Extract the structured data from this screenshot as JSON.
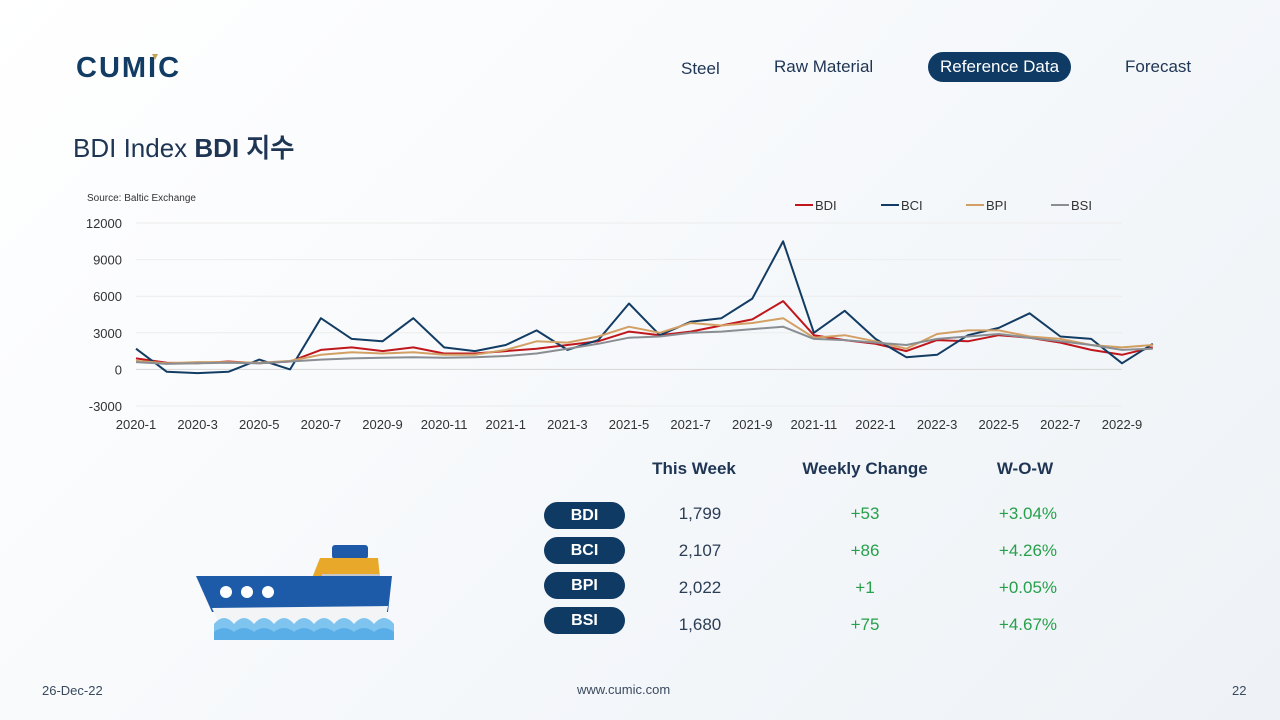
{
  "header": {
    "logo_text": "CUMIC",
    "nav": [
      {
        "label": "Steel",
        "active": false
      },
      {
        "label": "Raw Material",
        "active": false
      },
      {
        "label": "Reference Data",
        "active": true
      },
      {
        "label": "Forecast",
        "active": false
      }
    ]
  },
  "page": {
    "title_regular": "BDI Index ",
    "title_bold": "BDI 지수"
  },
  "chart_data": {
    "type": "line",
    "source": "Source:  Baltic Exchange",
    "xlabel": "",
    "ylabel": "",
    "ylim": [
      -3000,
      12000
    ],
    "y_ticks": [
      12000,
      9000,
      6000,
      3000,
      0,
      -3000
    ],
    "x_ticks": [
      "2020-1",
      "2020-3",
      "2020-5",
      "2020-7",
      "2020-9",
      "2020-11",
      "2021-1",
      "2021-3",
      "2021-5",
      "2021-7",
      "2021-9",
      "2021-11",
      "2022-1",
      "2022-3",
      "2022-5",
      "2022-7",
      "2022-9"
    ],
    "grid": true,
    "legend_position": "top-right",
    "x_start": "2020-01",
    "series": [
      {
        "name": "BDI",
        "color": "#c0171d",
        "points": [
          [
            "2020-01",
            900
          ],
          [
            "2020-02",
            550
          ],
          [
            "2020-03",
            500
          ],
          [
            "2020-04",
            650
          ],
          [
            "2020-05",
            500
          ],
          [
            "2020-06",
            650
          ],
          [
            "2020-07",
            1600
          ],
          [
            "2020-08",
            1800
          ],
          [
            "2020-09",
            1500
          ],
          [
            "2020-10",
            1800
          ],
          [
            "2020-11",
            1300
          ],
          [
            "2020-12",
            1300
          ],
          [
            "2021-01",
            1500
          ],
          [
            "2021-02",
            1700
          ],
          [
            "2021-03",
            2000
          ],
          [
            "2021-04",
            2300
          ],
          [
            "2021-05",
            3100
          ],
          [
            "2021-06",
            2800
          ],
          [
            "2021-07",
            3100
          ],
          [
            "2021-08",
            3600
          ],
          [
            "2021-09",
            4100
          ],
          [
            "2021-10",
            5600
          ],
          [
            "2021-11",
            2800
          ],
          [
            "2021-12",
            2400
          ],
          [
            "2022-01",
            2100
          ],
          [
            "2022-02",
            1500
          ],
          [
            "2022-03",
            2400
          ],
          [
            "2022-04",
            2300
          ],
          [
            "2022-05",
            2800
          ],
          [
            "2022-06",
            2600
          ],
          [
            "2022-07",
            2200
          ],
          [
            "2022-08",
            1600
          ],
          [
            "2022-09",
            1200
          ],
          [
            "2022-10",
            1800
          ]
        ]
      },
      {
        "name": "BCI",
        "color": "#123c63",
        "points": [
          [
            "2020-01",
            1700
          ],
          [
            "2020-02",
            -200
          ],
          [
            "2020-03",
            -300
          ],
          [
            "2020-04",
            -200
          ],
          [
            "2020-05",
            800
          ],
          [
            "2020-06",
            0
          ],
          [
            "2020-07",
            4200
          ],
          [
            "2020-08",
            2500
          ],
          [
            "2020-09",
            2300
          ],
          [
            "2020-10",
            4200
          ],
          [
            "2020-11",
            1800
          ],
          [
            "2020-12",
            1500
          ],
          [
            "2021-01",
            2000
          ],
          [
            "2021-02",
            3200
          ],
          [
            "2021-03",
            1600
          ],
          [
            "2021-04",
            2400
          ],
          [
            "2021-05",
            5400
          ],
          [
            "2021-06",
            2800
          ],
          [
            "2021-07",
            3900
          ],
          [
            "2021-08",
            4200
          ],
          [
            "2021-09",
            5800
          ],
          [
            "2021-10",
            10500
          ],
          [
            "2021-11",
            3000
          ],
          [
            "2021-12",
            4800
          ],
          [
            "2022-01",
            2500
          ],
          [
            "2022-02",
            1000
          ],
          [
            "2022-03",
            1200
          ],
          [
            "2022-04",
            2800
          ],
          [
            "2022-05",
            3400
          ],
          [
            "2022-06",
            4600
          ],
          [
            "2022-07",
            2700
          ],
          [
            "2022-08",
            2500
          ],
          [
            "2022-09",
            500
          ],
          [
            "2022-10",
            2100
          ]
        ]
      },
      {
        "name": "BPI",
        "color": "#d2a064",
        "points": [
          [
            "2020-01",
            700
          ],
          [
            "2020-02",
            500
          ],
          [
            "2020-03",
            600
          ],
          [
            "2020-04",
            600
          ],
          [
            "2020-05",
            550
          ],
          [
            "2020-06",
            700
          ],
          [
            "2020-07",
            1200
          ],
          [
            "2020-08",
            1400
          ],
          [
            "2020-09",
            1300
          ],
          [
            "2020-10",
            1400
          ],
          [
            "2020-11",
            1200
          ],
          [
            "2020-12",
            1200
          ],
          [
            "2021-01",
            1600
          ],
          [
            "2021-02",
            2300
          ],
          [
            "2021-03",
            2200
          ],
          [
            "2021-04",
            2700
          ],
          [
            "2021-05",
            3500
          ],
          [
            "2021-06",
            3000
          ],
          [
            "2021-07",
            3800
          ],
          [
            "2021-08",
            3600
          ],
          [
            "2021-09",
            3800
          ],
          [
            "2021-10",
            4200
          ],
          [
            "2021-11",
            2600
          ],
          [
            "2021-12",
            2800
          ],
          [
            "2022-01",
            2300
          ],
          [
            "2022-02",
            1700
          ],
          [
            "2022-03",
            2900
          ],
          [
            "2022-04",
            3200
          ],
          [
            "2022-05",
            3200
          ],
          [
            "2022-06",
            2700
          ],
          [
            "2022-07",
            2500
          ],
          [
            "2022-08",
            2000
          ],
          [
            "2022-09",
            1800
          ],
          [
            "2022-10",
            2000
          ]
        ]
      },
      {
        "name": "BSI",
        "color": "#8a8e93",
        "points": [
          [
            "2020-01",
            600
          ],
          [
            "2020-02",
            450
          ],
          [
            "2020-03",
            500
          ],
          [
            "2020-04",
            550
          ],
          [
            "2020-05",
            500
          ],
          [
            "2020-06",
            650
          ],
          [
            "2020-07",
            800
          ],
          [
            "2020-08",
            900
          ],
          [
            "2020-09",
            950
          ],
          [
            "2020-10",
            1000
          ],
          [
            "2020-11",
            950
          ],
          [
            "2020-12",
            1000
          ],
          [
            "2021-01",
            1100
          ],
          [
            "2021-02",
            1300
          ],
          [
            "2021-03",
            1700
          ],
          [
            "2021-04",
            2100
          ],
          [
            "2021-05",
            2600
          ],
          [
            "2021-06",
            2700
          ],
          [
            "2021-07",
            3000
          ],
          [
            "2021-08",
            3100
          ],
          [
            "2021-09",
            3300
          ],
          [
            "2021-10",
            3500
          ],
          [
            "2021-11",
            2500
          ],
          [
            "2021-12",
            2400
          ],
          [
            "2022-01",
            2200
          ],
          [
            "2022-02",
            2000
          ],
          [
            "2022-03",
            2500
          ],
          [
            "2022-04",
            2700
          ],
          [
            "2022-05",
            2900
          ],
          [
            "2022-06",
            2600
          ],
          [
            "2022-07",
            2300
          ],
          [
            "2022-08",
            2000
          ],
          [
            "2022-09",
            1600
          ],
          [
            "2022-10",
            1700
          ]
        ]
      }
    ]
  },
  "table": {
    "headers": [
      "This Week",
      "Weekly Change",
      "W-O-W"
    ],
    "rows": [
      {
        "index": "BDI",
        "this_week": "1,799",
        "change": "+53",
        "wow": "+3.04%"
      },
      {
        "index": "BCI",
        "this_week": "2,107",
        "change": "+86",
        "wow": "+4.26%"
      },
      {
        "index": "BPI",
        "this_week": "2,022",
        "change": "+1",
        "wow": "+0.05%"
      },
      {
        "index": "BSI",
        "this_week": "1,680",
        "change": "+75",
        "wow": "+4.67%"
      }
    ]
  },
  "footer": {
    "date": "26-Dec-22",
    "website": "www.cumic.com",
    "page_number": "22"
  }
}
